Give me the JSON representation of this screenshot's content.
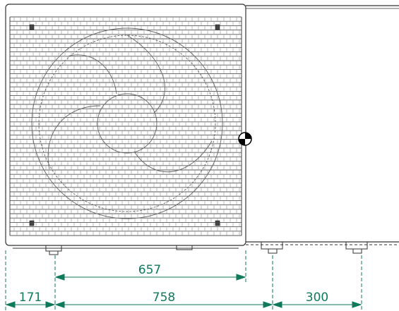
{
  "drawing": {
    "dimensions": {
      "fan_mount_span": "657",
      "left_offset": "171",
      "foot_span": "758",
      "right_offset": "300"
    },
    "colors": {
      "outline": "#333333",
      "grille": "#555555",
      "dimension": "#0f7a5a",
      "background": "#ffffff"
    },
    "icons": {
      "center_of_gravity": "center-of-gravity-icon"
    }
  }
}
